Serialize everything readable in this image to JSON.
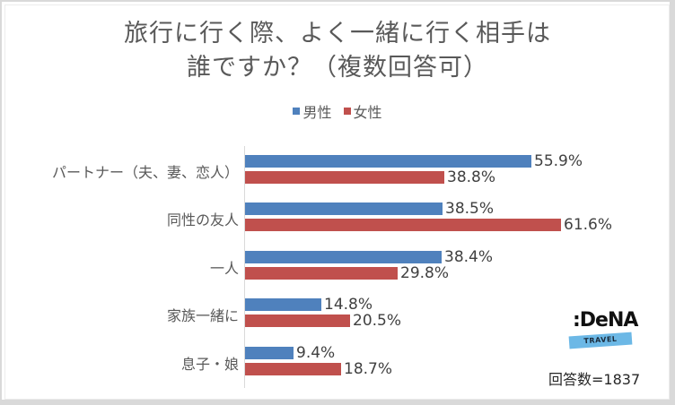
{
  "chart_data": {
    "type": "bar",
    "orientation": "horizontal",
    "title": "旅行に行く際、よく一緒に行く相手は誰ですか？（複数回答可）",
    "title_lines": [
      "旅行に行く際、よく一緒に行く相手は",
      "誰ですか？（複数回答可）"
    ],
    "categories": [
      "パートナー（夫、妻、恋人）",
      "同性の友人",
      "一人",
      "家族一緒に",
      "息子・娘"
    ],
    "series": [
      {
        "name": "男性",
        "color": "#4f81bd",
        "values": [
          55.9,
          38.5,
          38.4,
          14.8,
          9.4
        ],
        "labels": [
          "55.9%",
          "38.5%",
          "38.4%",
          "14.8%",
          "9.4%"
        ]
      },
      {
        "name": "女性",
        "color": "#c0504d",
        "values": [
          38.8,
          61.6,
          29.8,
          20.5,
          18.7
        ],
        "labels": [
          "38.8%",
          "61.6%",
          "29.8%",
          "20.5%",
          "18.7%"
        ]
      }
    ],
    "xlabel": "",
    "ylabel": "",
    "unit": "%",
    "grid": false,
    "legend_position": "top",
    "annotation": "回答数=1837"
  },
  "logo": {
    "main": ":DeNA",
    "sub": "TRAVEL"
  },
  "footer": {
    "respondents": "回答数=1837"
  }
}
